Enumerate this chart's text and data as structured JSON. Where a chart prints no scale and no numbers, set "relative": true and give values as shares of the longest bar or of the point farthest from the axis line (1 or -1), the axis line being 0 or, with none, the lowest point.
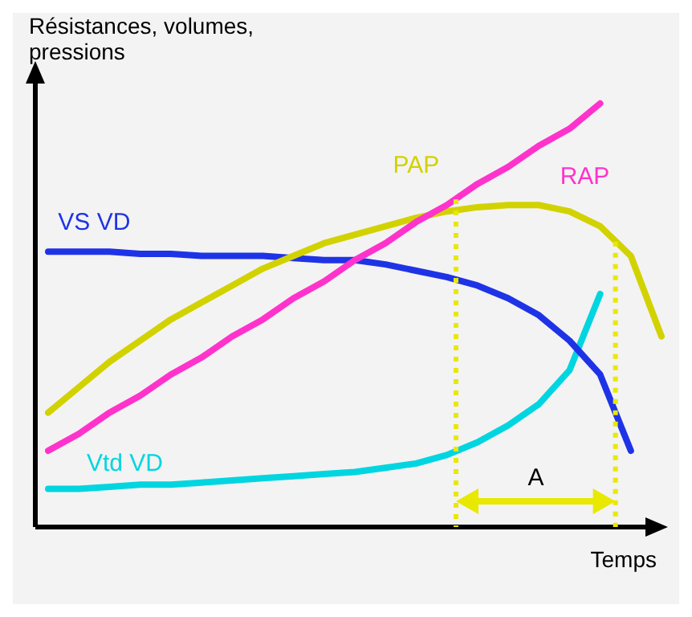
{
  "chart_data": {
    "type": "line",
    "relative": true,
    "ylabel": "Résistances, volumes, pressions",
    "xlabel": "Temps",
    "categories": [
      null,
      null,
      null,
      null,
      null,
      null,
      null,
      null,
      null,
      null,
      null,
      null,
      null,
      null,
      null,
      null,
      null,
      null,
      null,
      null,
      null
    ],
    "legend": false,
    "marker": "none",
    "line_style": "solid",
    "series": [
      {
        "name": "RAP",
        "color": "#ff33cc",
        "values": [
          0.18,
          0.22,
          0.27,
          0.31,
          0.36,
          0.4,
          0.45,
          0.49,
          0.54,
          0.58,
          0.63,
          0.67,
          0.72,
          0.76,
          0.81,
          0.85,
          0.9,
          0.94,
          1,
          null,
          null
        ]
      },
      {
        "name": "PAP",
        "color": "#d2d200",
        "values": [
          0.27,
          0.33,
          0.39,
          0.44,
          0.49,
          0.53,
          0.57,
          0.61,
          0.64,
          0.67,
          0.69,
          0.71,
          0.73,
          0.745,
          0.755,
          0.76,
          0.76,
          0.745,
          0.71,
          0.64,
          0.45
        ]
      },
      {
        "name": "VS VD",
        "color": "#1f33e6",
        "values": [
          0.65,
          0.65,
          0.65,
          0.645,
          0.645,
          0.64,
          0.64,
          0.64,
          0.635,
          0.63,
          0.63,
          0.62,
          0.605,
          0.59,
          0.57,
          0.54,
          0.5,
          0.44,
          0.36,
          0.18,
          null
        ]
      },
      {
        "name": "Vtd VD",
        "color": "#00d5e0",
        "values": [
          0.09,
          0.09,
          0.095,
          0.1,
          0.1,
          0.105,
          0.11,
          0.115,
          0.12,
          0.125,
          0.13,
          0.14,
          0.15,
          0.17,
          0.2,
          0.24,
          0.29,
          0.37,
          0.55,
          null,
          null
        ]
      }
    ],
    "annotations": [
      "A"
    ]
  }
}
